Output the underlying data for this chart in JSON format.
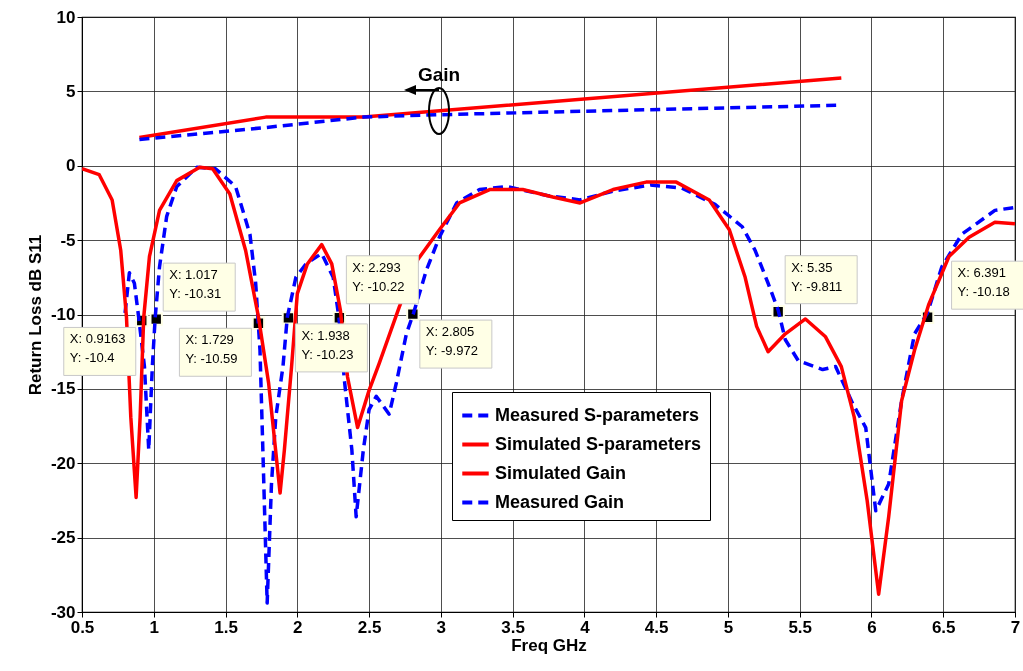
{
  "chart_data": {
    "type": "line",
    "xlabel": "Freq GHz",
    "ylabel": "Return Loss dB S11",
    "xlim": [
      0.5,
      7
    ],
    "ylim": [
      -30,
      10
    ],
    "xticks": [
      0.5,
      1,
      1.5,
      2,
      2.5,
      3,
      3.5,
      4,
      4.5,
      5,
      5.5,
      6,
      6.5,
      7
    ],
    "yticks": [
      -30,
      -25,
      -20,
      -15,
      -10,
      -5,
      0,
      5,
      10
    ],
    "grid": true,
    "legend": "bottom",
    "series": [
      {
        "name": "Measured S-parameters",
        "color": "#0000ff",
        "line_style": "dashed",
        "x": [
          0.8,
          0.83,
          0.865,
          0.895,
          0.935,
          0.965,
          0.99,
          1.01,
          1.04,
          1.09,
          1.16,
          1.3,
          1.43,
          1.57,
          1.67,
          1.71,
          1.74,
          1.76,
          1.79,
          1.82,
          1.85,
          1.9,
          1.93,
          1.99,
          2.06,
          2.17,
          2.25,
          2.29,
          2.33,
          2.38,
          2.41,
          2.46,
          2.5,
          2.55,
          2.64,
          2.69,
          2.76,
          2.81,
          2.9,
          2.99,
          3.11,
          3.27,
          3.46,
          3.74,
          3.97,
          4.2,
          4.46,
          4.68,
          4.91,
          5.1,
          5.19,
          5.28,
          5.35,
          5.4,
          5.49,
          5.66,
          5.75,
          5.87,
          5.96,
          6.03,
          6.12,
          6.21,
          6.3,
          6.39,
          6.49,
          6.63,
          6.86,
          7.0
        ],
        "values": [
          -9.9,
          -7.2,
          -7.9,
          -10.2,
          -13.5,
          -19.1,
          -13.5,
          -10.2,
          -6.8,
          -3.4,
          -1.4,
          -0.1,
          -0.2,
          -1.4,
          -4.6,
          -7.9,
          -12.4,
          -19.1,
          -29.4,
          -21.4,
          -16.9,
          -13.5,
          -10.2,
          -7.5,
          -6.6,
          -5.9,
          -7.5,
          -10.2,
          -14.6,
          -19.1,
          -23.6,
          -19.1,
          -16.4,
          -15.5,
          -16.7,
          -14.6,
          -11.3,
          -9.9,
          -7.0,
          -4.8,
          -2.5,
          -1.6,
          -1.4,
          -2.0,
          -2.3,
          -1.7,
          -1.3,
          -1.5,
          -2.6,
          -4.1,
          -5.7,
          -7.9,
          -9.7,
          -11.7,
          -13.1,
          -13.7,
          -13.5,
          -16.0,
          -17.6,
          -23.2,
          -21.4,
          -15.8,
          -11.3,
          -9.9,
          -6.8,
          -4.6,
          -3.0,
          -2.8
        ]
      },
      {
        "name": "Simulated S-parameters",
        "color": "#ff0000",
        "line_style": "solid",
        "x": [
          0.5,
          0.62,
          0.71,
          0.77,
          0.81,
          0.84,
          0.877,
          0.905,
          0.93,
          0.97,
          1.04,
          1.16,
          1.32,
          1.41,
          1.53,
          1.64,
          1.73,
          1.8,
          1.88,
          1.91,
          1.96,
          2.0,
          2.07,
          2.17,
          2.24,
          2.3,
          2.35,
          2.42,
          2.5,
          2.57,
          2.71,
          2.84,
          2.99,
          3.13,
          3.34,
          3.57,
          3.78,
          3.97,
          4.2,
          4.43,
          4.64,
          4.87,
          5.01,
          5.12,
          5.2,
          5.28,
          5.4,
          5.54,
          5.68,
          5.79,
          5.88,
          5.97,
          6.05,
          6.12,
          6.21,
          6.3,
          6.4,
          6.54,
          6.68,
          6.86,
          7.0
        ],
        "values": [
          -0.2,
          -0.6,
          -2.3,
          -5.7,
          -10.2,
          -16.9,
          -22.3,
          -16.9,
          -10.2,
          -6.1,
          -3.0,
          -1.0,
          -0.1,
          -0.2,
          -1.9,
          -5.7,
          -10.2,
          -14.6,
          -22.0,
          -19.1,
          -13.5,
          -8.6,
          -6.6,
          -5.3,
          -6.6,
          -9.7,
          -14.2,
          -17.6,
          -15.1,
          -13.3,
          -9.5,
          -6.3,
          -4.3,
          -2.5,
          -1.6,
          -1.6,
          -2.1,
          -2.5,
          -1.6,
          -1.1,
          -1.1,
          -2.3,
          -4.3,
          -7.5,
          -10.8,
          -12.5,
          -11.3,
          -10.3,
          -11.5,
          -13.5,
          -16.9,
          -22.5,
          -28.8,
          -23.6,
          -15.8,
          -12.4,
          -9.3,
          -6.1,
          -4.8,
          -3.8,
          -3.9
        ]
      },
      {
        "name": "Simulated Gain",
        "color": "#ff0000",
        "line_style": "solid",
        "x": [
          0.9,
          1.78,
          2.46,
          5.79
        ],
        "values": [
          1.9,
          3.27,
          3.27,
          5.9
        ]
      },
      {
        "name": "Measured Gain",
        "color": "#0000ff",
        "line_style": "dashed",
        "x": [
          0.9,
          1.78,
          2.46,
          2.98,
          5.78
        ],
        "values": [
          1.77,
          2.57,
          3.27,
          3.43,
          4.07
        ]
      }
    ],
    "annotations": [
      "Gain",
      {
        "text": "X: 0.9163\nY: -10.4",
        "x": 0.9163,
        "y": -10.4
      },
      {
        "text": "X: 1.017\nY: -10.31",
        "x": 1.017,
        "y": -10.31
      },
      {
        "text": "X: 1.729\nY: -10.59",
        "x": 1.729,
        "y": -10.59
      },
      {
        "text": "X: 1.938\nY: -10.23",
        "x": 1.938,
        "y": -10.23
      },
      {
        "text": "X: 2.293\nY: -10.22",
        "x": 2.293,
        "y": -10.22
      },
      {
        "text": "X: 2.805\nY: -9.972",
        "x": 2.805,
        "y": -9.972
      },
      {
        "text": "X: 5.35\nY: -9.811",
        "x": 5.35,
        "y": -9.811
      },
      {
        "text": "X: 6.391\nY: -10.18",
        "x": 6.391,
        "y": -10.18
      }
    ]
  }
}
